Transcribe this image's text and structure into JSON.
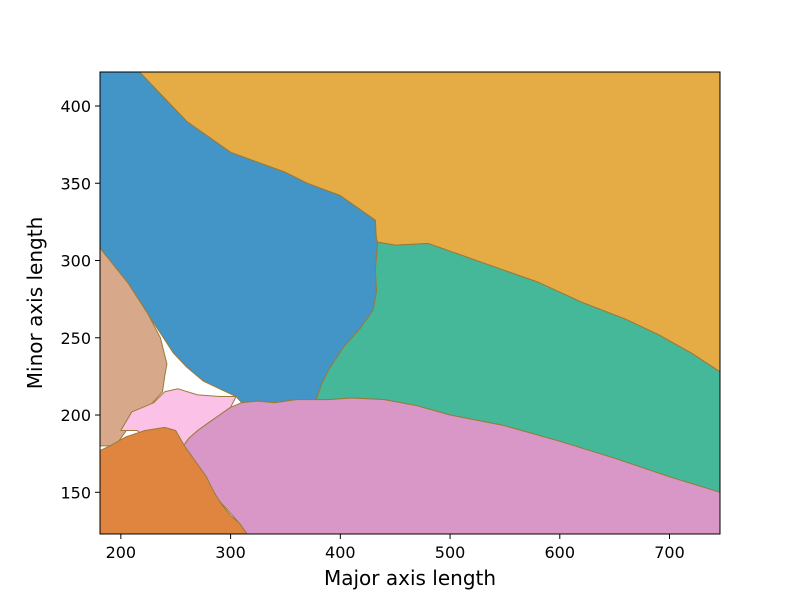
{
  "chart_data": {
    "type": "area",
    "title": "",
    "xlabel": "Major axis length",
    "ylabel": "Minor axis length",
    "xlim": [
      181,
      746
    ],
    "ylim": [
      123,
      422
    ],
    "xticks": [
      200,
      300,
      400,
      500,
      600,
      700
    ],
    "yticks": [
      150,
      200,
      250,
      300,
      350,
      400
    ],
    "grid": false,
    "legend": "none",
    "regions": [
      {
        "color": "#e5ab45",
        "polygon": [
          [
            181,
            422
          ],
          [
            746,
            422
          ],
          [
            746,
            228
          ],
          [
            720,
            240
          ],
          [
            690,
            252
          ],
          [
            660,
            262
          ],
          [
            620,
            273
          ],
          [
            580,
            286
          ],
          [
            540,
            296
          ],
          [
            500,
            306
          ],
          [
            480,
            311
          ],
          [
            450,
            310
          ],
          [
            433,
            312
          ],
          [
            432,
            326
          ],
          [
            400,
            342
          ],
          [
            370,
            350
          ],
          [
            350,
            357
          ],
          [
            300,
            370
          ],
          [
            260,
            390
          ],
          [
            217,
            422
          ]
        ]
      },
      {
        "color": "#4295c6",
        "polygon": [
          [
            181,
            422
          ],
          [
            217,
            422
          ],
          [
            260,
            390
          ],
          [
            300,
            370
          ],
          [
            350,
            357
          ],
          [
            370,
            350
          ],
          [
            400,
            342
          ],
          [
            432,
            326
          ],
          [
            432,
            318
          ],
          [
            434,
            311
          ],
          [
            432,
            294
          ],
          [
            433,
            280
          ],
          [
            430,
            268
          ],
          [
            418,
            256
          ],
          [
            403,
            244
          ],
          [
            390,
            230
          ],
          [
            383,
            220
          ],
          [
            378,
            210
          ],
          [
            360,
            210
          ],
          [
            340,
            208
          ],
          [
            325,
            209
          ],
          [
            310,
            208
          ],
          [
            305,
            212
          ],
          [
            290,
            217
          ],
          [
            275,
            222
          ],
          [
            260,
            231
          ],
          [
            248,
            240
          ],
          [
            225,
            265
          ],
          [
            207,
            285
          ],
          [
            190,
            300
          ],
          [
            181,
            308
          ]
        ]
      },
      {
        "color": "#44b898",
        "polygon": [
          [
            433,
            312
          ],
          [
            450,
            310
          ],
          [
            480,
            311
          ],
          [
            500,
            306
          ],
          [
            540,
            296
          ],
          [
            580,
            286
          ],
          [
            620,
            273
          ],
          [
            660,
            262
          ],
          [
            690,
            252
          ],
          [
            720,
            240
          ],
          [
            746,
            228
          ],
          [
            746,
            150
          ],
          [
            700,
            160
          ],
          [
            650,
            172
          ],
          [
            600,
            183
          ],
          [
            550,
            193
          ],
          [
            500,
            200
          ],
          [
            470,
            206
          ],
          [
            440,
            210
          ],
          [
            410,
            211
          ],
          [
            390,
            210
          ],
          [
            378,
            210
          ],
          [
            383,
            220
          ],
          [
            390,
            230
          ],
          [
            403,
            244
          ],
          [
            418,
            256
          ],
          [
            430,
            268
          ],
          [
            433,
            280
          ],
          [
            432,
            294
          ],
          [
            434,
            311
          ]
        ]
      },
      {
        "color": "#d7a98a",
        "polygon": [
          [
            181,
            308
          ],
          [
            190,
            300
          ],
          [
            207,
            285
          ],
          [
            225,
            265
          ],
          [
            236,
            250
          ],
          [
            242,
            233
          ],
          [
            240,
            225
          ],
          [
            238,
            215
          ],
          [
            225,
            205
          ],
          [
            210,
            195
          ],
          [
            195,
            180
          ],
          [
            181,
            180
          ]
        ]
      },
      {
        "color": "#fbc1e6",
        "polygon": [
          [
            210,
            202
          ],
          [
            230,
            208
          ],
          [
            240,
            215
          ],
          [
            252,
            217
          ],
          [
            270,
            213
          ],
          [
            290,
            212
          ],
          [
            305,
            212
          ],
          [
            300,
            205
          ],
          [
            290,
            200
          ],
          [
            280,
            195
          ],
          [
            270,
            190
          ],
          [
            262,
            185
          ],
          [
            255,
            178
          ],
          [
            242,
            170
          ],
          [
            232,
            170
          ],
          [
            228,
            178
          ],
          [
            222,
            185
          ],
          [
            215,
            190
          ],
          [
            200,
            190
          ]
        ]
      },
      {
        "color": "#d997c8",
        "polygon": [
          [
            232,
            170
          ],
          [
            242,
            170
          ],
          [
            255,
            178
          ],
          [
            262,
            185
          ],
          [
            270,
            190
          ],
          [
            280,
            195
          ],
          [
            290,
            200
          ],
          [
            300,
            205
          ],
          [
            310,
            208
          ],
          [
            325,
            209
          ],
          [
            340,
            208
          ],
          [
            360,
            210
          ],
          [
            378,
            210
          ],
          [
            390,
            210
          ],
          [
            410,
            211
          ],
          [
            440,
            210
          ],
          [
            470,
            206
          ],
          [
            500,
            200
          ],
          [
            550,
            193
          ],
          [
            600,
            183
          ],
          [
            650,
            172
          ],
          [
            700,
            160
          ],
          [
            746,
            150
          ],
          [
            746,
            123
          ],
          [
            315,
            123
          ],
          [
            308,
            130
          ],
          [
            298,
            138
          ],
          [
            285,
            148
          ],
          [
            272,
            158
          ],
          [
            258,
            163
          ],
          [
            240,
            165
          ]
        ]
      },
      {
        "color": "#e08540",
        "polygon": [
          [
            181,
            123
          ],
          [
            315,
            123
          ],
          [
            308,
            130
          ],
          [
            300,
            135
          ],
          [
            292,
            142
          ],
          [
            285,
            150
          ],
          [
            278,
            160
          ],
          [
            268,
            170
          ],
          [
            258,
            180
          ],
          [
            250,
            190
          ],
          [
            240,
            192
          ],
          [
            222,
            190
          ],
          [
            205,
            186
          ],
          [
            190,
            180
          ],
          [
            181,
            177
          ]
        ]
      }
    ]
  }
}
